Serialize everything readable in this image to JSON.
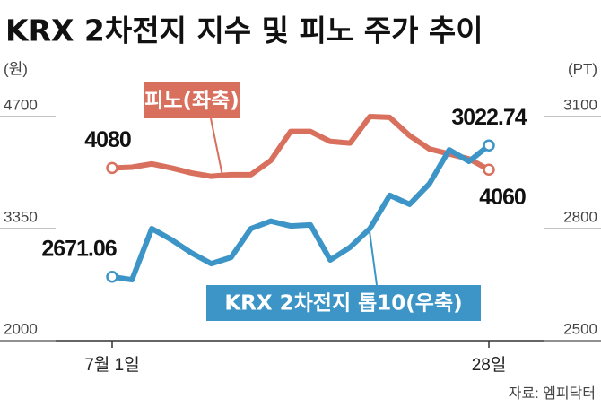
{
  "chart_data": {
    "type": "line",
    "title": "KRX 2차전지 지수 및 피노 주가 추이",
    "y_unit": "(원)",
    "y2_unit": "(PT)",
    "source": "자료: 엠피닥터",
    "categories": [
      "7월 1일",
      null,
      null,
      null,
      null,
      null,
      null,
      null,
      null,
      null,
      null,
      null,
      null,
      null,
      null,
      null,
      null,
      null,
      null,
      "28일"
    ],
    "ylim": [
      2000,
      4700
    ],
    "yticks": [
      2000,
      3350,
      4700
    ],
    "y2lim": [
      2500,
      3100
    ],
    "y2ticks": [
      2500,
      2800,
      3100
    ],
    "grid": false,
    "series": [
      {
        "name": "피노(좌축)",
        "color": "#d9705e",
        "axis": "y",
        "values": [
          4080,
          4090,
          4130,
          4080,
          4020,
          3980,
          4000,
          4000,
          4170,
          4520,
          4520,
          4400,
          4380,
          4700,
          4690,
          4470,
          4310,
          4250,
          4190,
          4060
        ]
      },
      {
        "name": "KRX 2차전지 톱10(우축)",
        "color": "#3d95c7",
        "axis": "y2",
        "values": [
          2671.06,
          2663,
          2800,
          2770,
          2735,
          2706,
          2723,
          2800,
          2820,
          2807,
          2810,
          2716,
          2750,
          2800,
          2889,
          2865,
          2920,
          3011,
          2980,
          3022.74
        ]
      }
    ]
  }
}
